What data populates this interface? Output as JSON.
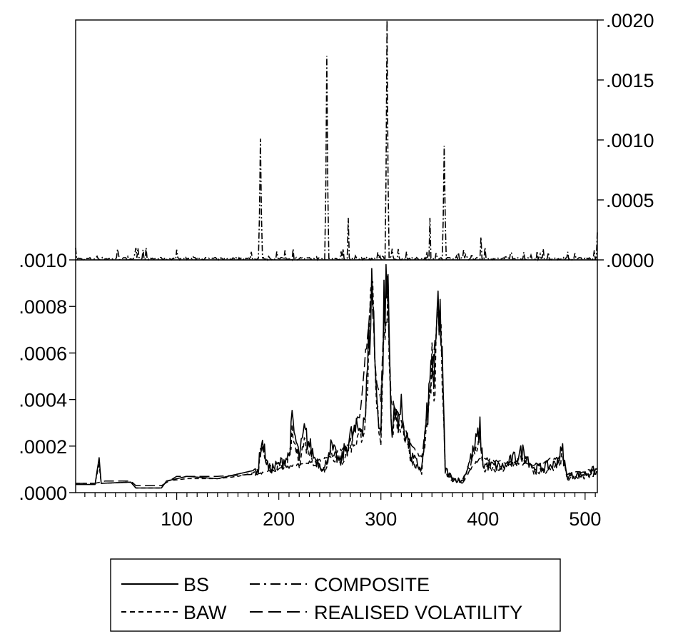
{
  "chart_data": {
    "type": "line",
    "panels": [
      {
        "id": "top",
        "axis_side": "right",
        "ylim": [
          0,
          0.002
        ],
        "yticks": [
          0,
          0.0005,
          0.001,
          0.0015,
          0.002
        ],
        "ytick_labels": [
          ".0000",
          ".0005",
          ".0010",
          ".0015",
          ".0020"
        ],
        "series": [
          {
            "name": "COMPOSITE",
            "peaks": [
              {
                "x": 182,
                "y": 0.00101
              },
              {
                "x": 247,
                "y": 0.0017
              },
              {
                "x": 268,
                "y": 0.00035
              },
              {
                "x": 306,
                "y": 0.002
              },
              {
                "x": 348,
                "y": 0.00035
              },
              {
                "x": 362,
                "y": 0.00095
              },
              {
                "x": 398,
                "y": 0.00019
              },
              {
                "x": 512,
                "y": 0.00024
              }
            ]
          }
        ]
      },
      {
        "id": "bottom",
        "axis_side": "left",
        "ylim": [
          0,
          0.001
        ],
        "yticks": [
          0,
          0.0002,
          0.0004,
          0.0006,
          0.0008,
          0.001
        ],
        "ytick_labels": [
          ".0000",
          ".0002",
          ".0004",
          ".0006",
          ".0008",
          ".0010"
        ],
        "series": [
          {
            "name": "BS",
            "anchors": [
              [
                1,
                3.5e-05
              ],
              [
                20,
                3.5e-05
              ],
              [
                24,
                0.00015
              ],
              [
                26,
                4e-05
              ],
              [
                55,
                4.5e-05
              ],
              [
                60,
                2e-05
              ],
              [
                85,
                2e-05
              ],
              [
                90,
                5e-05
              ],
              [
                110,
                7e-05
              ],
              [
                140,
                6e-05
              ],
              [
                160,
                8e-05
              ],
              [
                180,
                0.0001
              ],
              [
                183,
                0.00023
              ],
              [
                190,
                0.0001
              ],
              [
                200,
                0.00012
              ],
              [
                210,
                0.00016
              ],
              [
                213,
                0.0003
              ],
              [
                220,
                0.00015
              ],
              [
                225,
                0.00026
              ],
              [
                235,
                0.00015
              ],
              [
                245,
                0.0001
              ],
              [
                250,
                0.0002
              ],
              [
                260,
                0.00013
              ],
              [
                270,
                0.00024
              ],
              [
                280,
                0.00028
              ],
              [
                285,
                0.00035
              ],
              [
                290,
                0.0008
              ],
              [
                292,
                0.0009
              ],
              [
                295,
                0.00045
              ],
              [
                300,
                0.00025
              ],
              [
                303,
                0.0008
              ],
              [
                307,
                0.0009
              ],
              [
                310,
                0.0003
              ],
              [
                320,
                0.00035
              ],
              [
                330,
                0.00015
              ],
              [
                340,
                0.0001
              ],
              [
                348,
                0.00045
              ],
              [
                350,
                0.00063
              ],
              [
                352,
                0.0004
              ],
              [
                355,
                0.00075
              ],
              [
                358,
                0.0008
              ],
              [
                361,
                0.0004
              ],
              [
                363,
                0.0001
              ],
              [
                370,
                6e-05
              ],
              [
                380,
                5e-05
              ],
              [
                390,
                0.00017
              ],
              [
                397,
                0.00027
              ],
              [
                400,
                0.00012
              ],
              [
                420,
                0.00011
              ],
              [
                440,
                0.00018
              ],
              [
                450,
                0.0001
              ],
              [
                470,
                0.00012
              ],
              [
                478,
                0.00018
              ],
              [
                482,
                7e-05
              ],
              [
                500,
                8e-05
              ],
              [
                512,
                0.0001
              ]
            ]
          },
          {
            "name": "BAW",
            "anchors": [
              [
                1,
                4e-05
              ],
              [
                20,
                4e-05
              ],
              [
                24,
                0.00012
              ],
              [
                26,
                4e-05
              ],
              [
                55,
                4.5e-05
              ],
              [
                60,
                2e-05
              ],
              [
                85,
                2e-05
              ],
              [
                90,
                5e-05
              ],
              [
                110,
                6e-05
              ],
              [
                140,
                6e-05
              ],
              [
                160,
                7e-05
              ],
              [
                180,
                9e-05
              ],
              [
                183,
                0.0002
              ],
              [
                190,
                0.0001
              ],
              [
                200,
                0.00011
              ],
              [
                210,
                0.00013
              ],
              [
                213,
                0.00025
              ],
              [
                220,
                0.00013
              ],
              [
                225,
                0.00022
              ],
              [
                235,
                0.00013
              ],
              [
                245,
                0.0001
              ],
              [
                250,
                0.00018
              ],
              [
                260,
                0.00012
              ],
              [
                270,
                0.0002
              ],
              [
                280,
                0.00025
              ],
              [
                285,
                0.0003
              ],
              [
                290,
                0.00075
              ],
              [
                292,
                0.00085
              ],
              [
                295,
                0.0004
              ],
              [
                300,
                0.00022
              ],
              [
                303,
                0.00075
              ],
              [
                307,
                0.00085
              ],
              [
                310,
                0.00028
              ],
              [
                320,
                0.0003
              ],
              [
                330,
                0.00014
              ],
              [
                340,
                9e-05
              ],
              [
                348,
                0.0004
              ],
              [
                350,
                0.0006
              ],
              [
                352,
                0.00035
              ],
              [
                355,
                0.0007
              ],
              [
                358,
                0.00075
              ],
              [
                361,
                0.00035
              ],
              [
                363,
                9e-05
              ],
              [
                370,
                6e-05
              ],
              [
                380,
                5e-05
              ],
              [
                390,
                0.00015
              ],
              [
                397,
                0.00024
              ],
              [
                400,
                0.0001
              ],
              [
                420,
                0.0001
              ],
              [
                440,
                0.00015
              ],
              [
                450,
                9e-05
              ],
              [
                470,
                0.0001
              ],
              [
                478,
                0.00015
              ],
              [
                482,
                6e-05
              ],
              [
                500,
                7e-05
              ],
              [
                512,
                9e-05
              ]
            ]
          },
          {
            "name": "REALISED VOLATILITY",
            "anchors": [
              [
                1,
                4e-05
              ],
              [
                20,
                4e-05
              ],
              [
                30,
                5e-05
              ],
              [
                55,
                5e-05
              ],
              [
                60,
                3e-05
              ],
              [
                85,
                3e-05
              ],
              [
                100,
                7e-05
              ],
              [
                140,
                7e-05
              ],
              [
                180,
                8e-05
              ],
              [
                200,
                0.0001
              ],
              [
                220,
                0.00012
              ],
              [
                250,
                0.00015
              ],
              [
                270,
                0.00022
              ],
              [
                280,
                0.00035
              ],
              [
                288,
                0.00075
              ],
              [
                291,
                0.00088
              ],
              [
                295,
                0.0005
              ],
              [
                300,
                0.0004
              ],
              [
                304,
                0.00085
              ],
              [
                306,
                0.0009
              ],
              [
                310,
                0.0004
              ],
              [
                320,
                0.0003
              ],
              [
                330,
                0.0002
              ],
              [
                340,
                0.00015
              ],
              [
                350,
                0.0005
              ],
              [
                356,
                0.00078
              ],
              [
                360,
                0.0006
              ],
              [
                363,
                8e-05
              ],
              [
                380,
                4e-05
              ],
              [
                390,
                0.00012
              ],
              [
                400,
                0.00015
              ],
              [
                420,
                0.00013
              ],
              [
                450,
                0.00012
              ],
              [
                478,
                0.00016
              ],
              [
                482,
                8e-05
              ],
              [
                512,
                0.0001
              ]
            ]
          }
        ]
      }
    ],
    "xlim": [
      1,
      512
    ],
    "xticks": [
      100,
      200,
      300,
      400,
      500
    ],
    "xtick_labels": [
      "100",
      "200",
      "300",
      "400",
      "500"
    ],
    "legend": {
      "placement": "bottom-center",
      "entries": [
        {
          "label": "BS",
          "style": "solid"
        },
        {
          "label": "COMPOSITE",
          "style": "dashdot"
        },
        {
          "label": "BAW",
          "style": "dotted"
        },
        {
          "label": "REALISED VOLATILITY",
          "style": "longdash"
        }
      ]
    },
    "grid": false,
    "colors": {
      "line": "#000000",
      "background": "#ffffff"
    }
  }
}
